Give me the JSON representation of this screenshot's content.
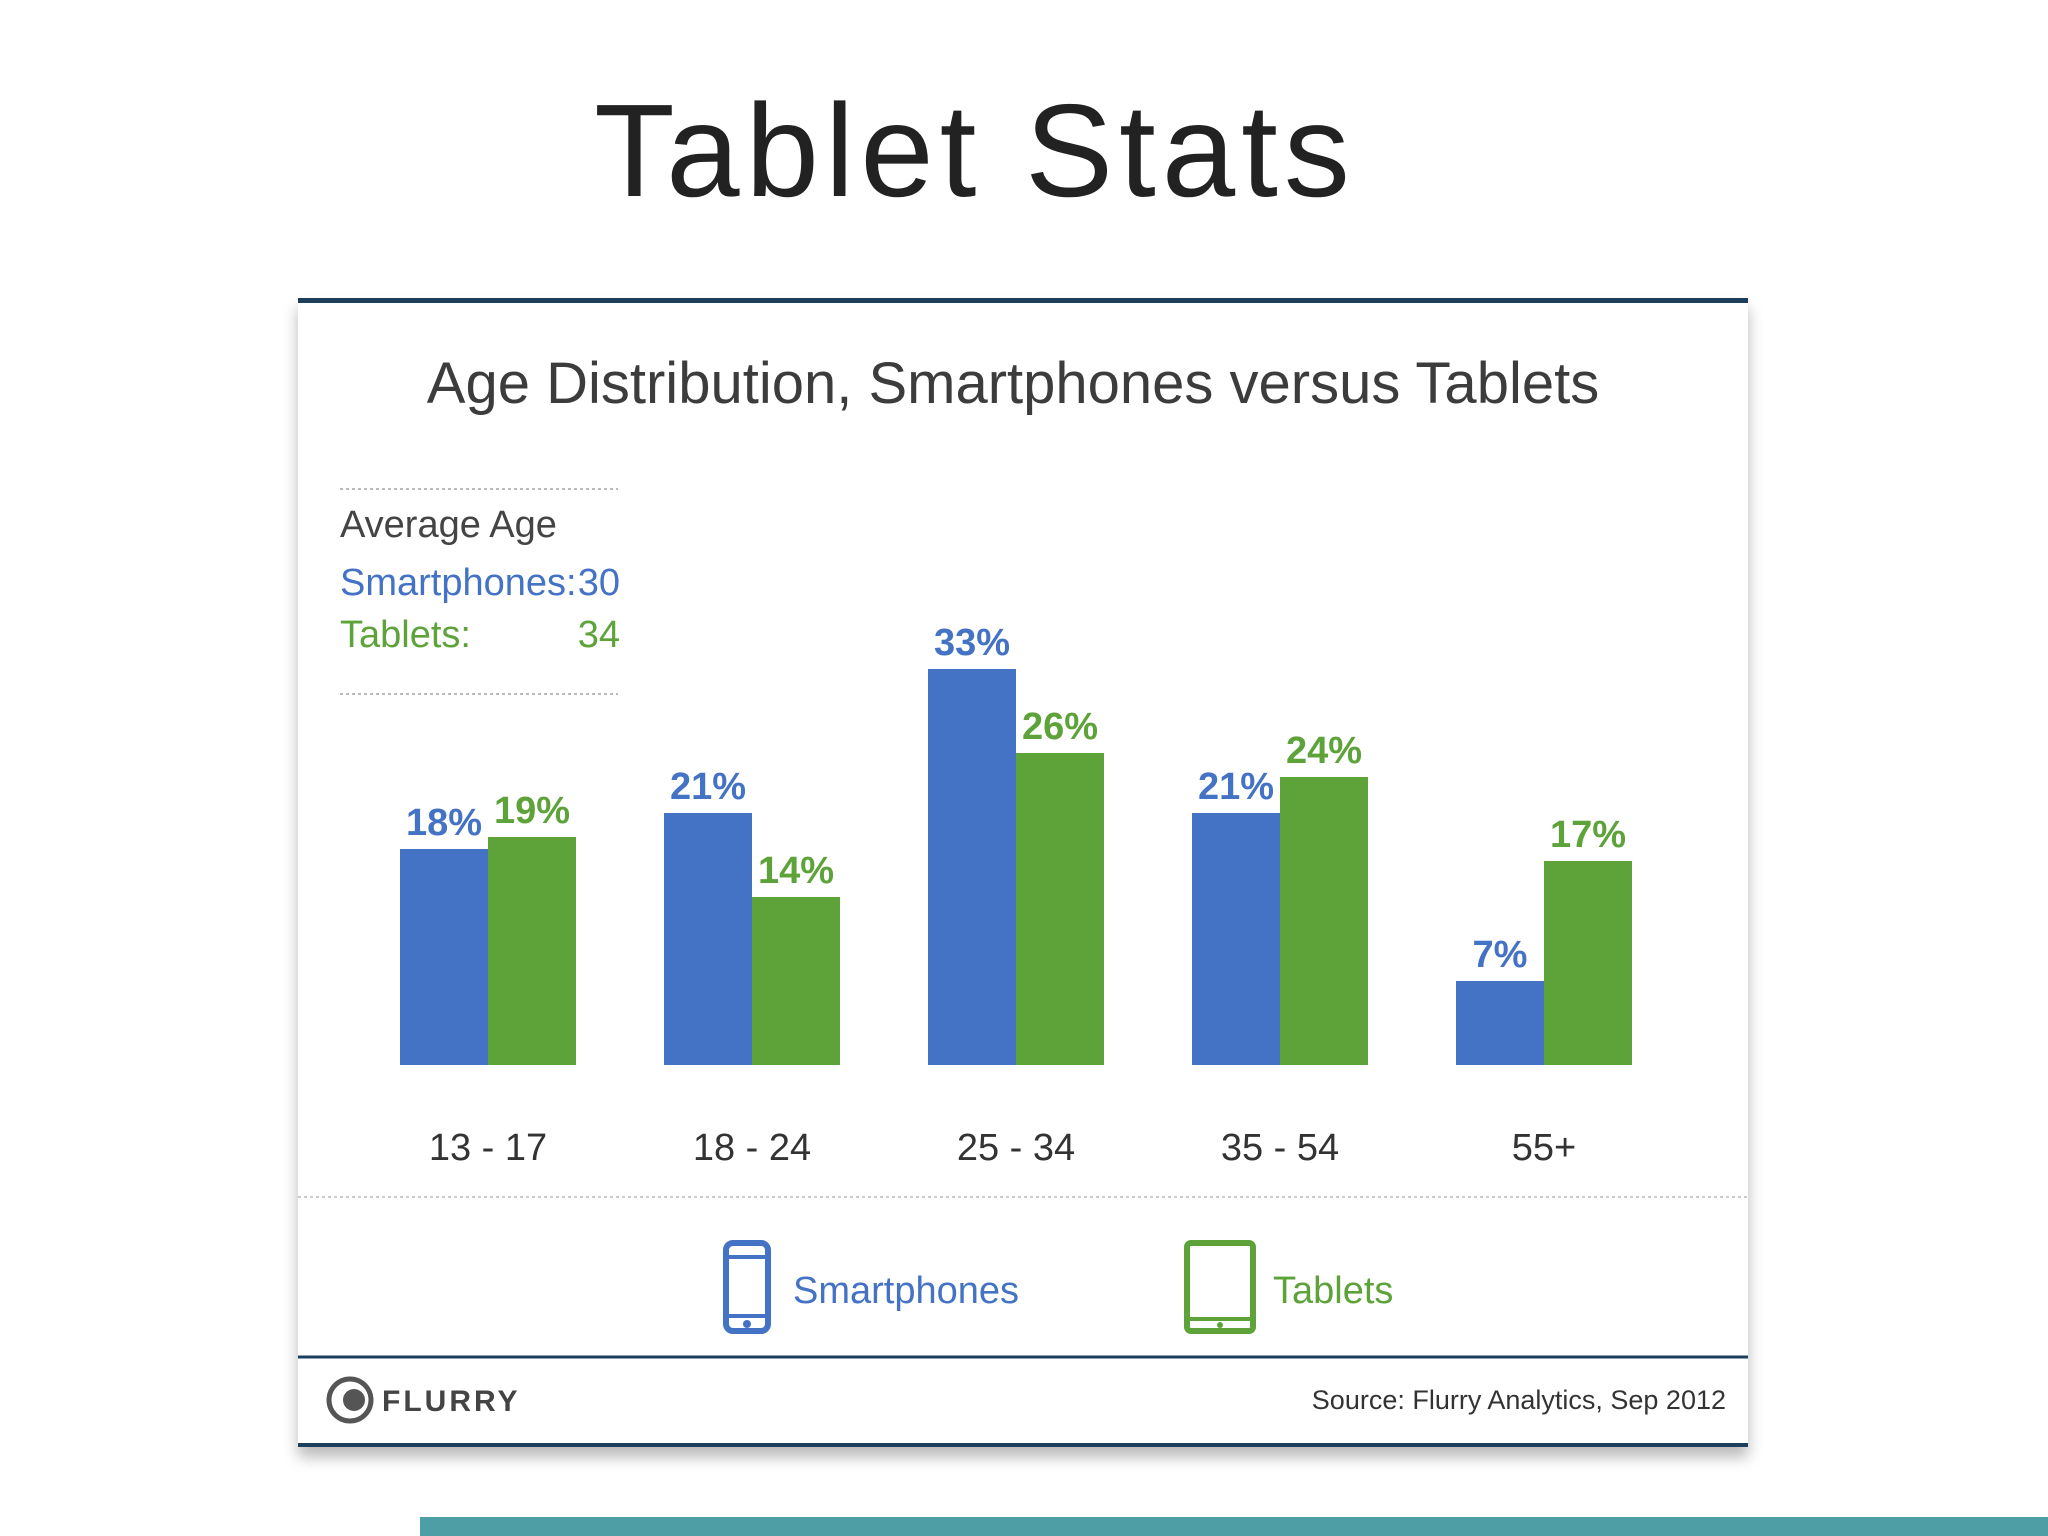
{
  "slide": {
    "title": "Tablet Stats"
  },
  "colors": {
    "smartphones": "#4472c4",
    "tablets": "#5ea23a",
    "card_border": "#1d3f5c",
    "accent_bar": "#4e9ea6"
  },
  "average_age": {
    "heading": "Average Age",
    "smartphones_label": "Smartphones:",
    "smartphones_value": "30",
    "tablets_label": "Tablets:",
    "tablets_value": "34"
  },
  "legend": {
    "position": "bottom",
    "smartphones": {
      "label": "Smartphones",
      "icon": "smartphone-icon"
    },
    "tablets": {
      "label": "Tablets",
      "icon": "tablet-icon"
    }
  },
  "footer": {
    "logo_text": "FLURRY",
    "logo_icon": "flurry-logo-icon",
    "source": "Source: Flurry Analytics, Sep 2012"
  },
  "chart_data": {
    "type": "bar",
    "title": "Age Distribution, Smartphones versus Tablets",
    "xlabel": "",
    "ylabel": "",
    "ylim": [
      0,
      33
    ],
    "grid": false,
    "categories": [
      "13 - 17",
      "18 - 24",
      "25 - 34",
      "35 - 54",
      "55+"
    ],
    "series": [
      {
        "name": "Smartphones",
        "values": [
          18,
          21,
          33,
          21,
          7
        ],
        "labels": [
          "18%",
          "21%",
          "33%",
          "21%",
          "7%"
        ]
      },
      {
        "name": "Tablets",
        "values": [
          19,
          14,
          26,
          24,
          17
        ],
        "labels": [
          "19%",
          "14%",
          "26%",
          "24%",
          "17%"
        ]
      }
    ]
  }
}
